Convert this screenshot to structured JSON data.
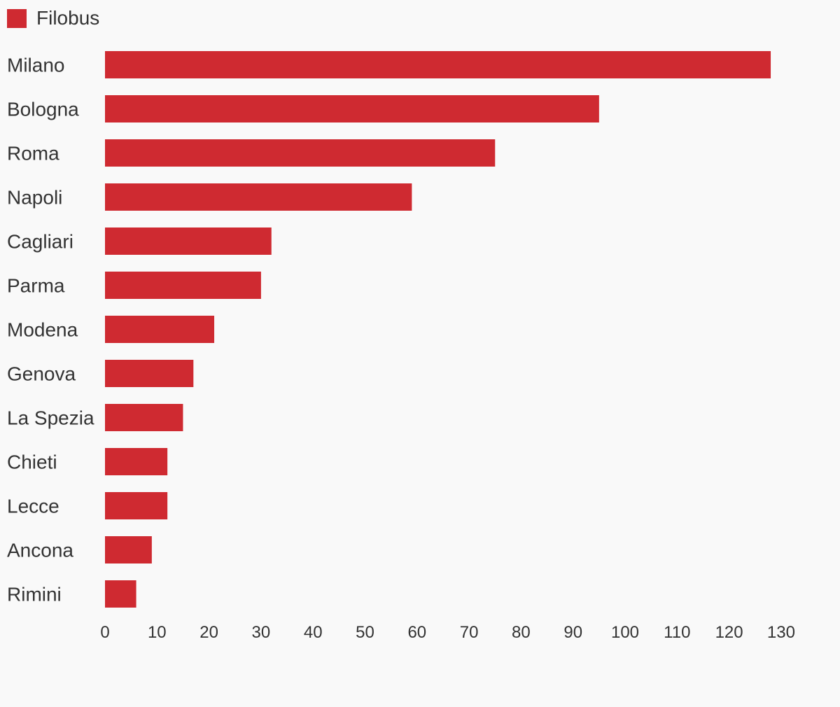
{
  "chart_data": {
    "type": "bar",
    "orientation": "horizontal",
    "categories": [
      "Milano",
      "Bologna",
      "Roma",
      "Napoli",
      "Cagliari",
      "Parma",
      "Modena",
      "Genova",
      "La Spezia",
      "Chieti",
      "Lecce",
      "Ancona",
      "Rimini"
    ],
    "series": [
      {
        "name": "Filobus",
        "color": "#cf2a31",
        "values": [
          128,
          95,
          75,
          59,
          32,
          30,
          21,
          17,
          15,
          12,
          12,
          9,
          6
        ]
      }
    ],
    "xticks": [
      0,
      10,
      20,
      30,
      40,
      50,
      60,
      70,
      80,
      90,
      100,
      110,
      120,
      130
    ],
    "xlim": [
      0,
      130
    ],
    "legend_position": "top-left",
    "grid": false
  }
}
